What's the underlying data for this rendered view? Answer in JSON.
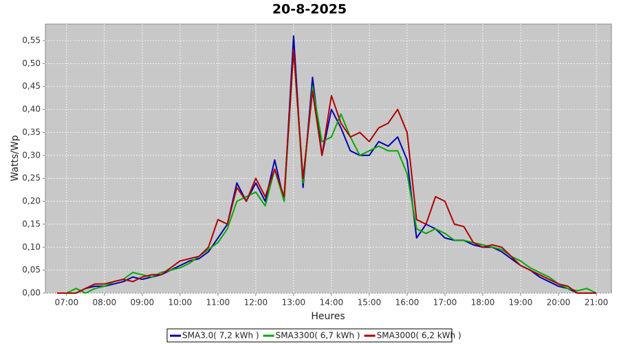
{
  "chart_data": {
    "type": "line",
    "title": "20-8-2025",
    "x_label": "Heures",
    "y_label": "Watts/Wp",
    "x": [
      6.75,
      7,
      7.25,
      7.5,
      7.75,
      8,
      8.25,
      8.5,
      8.75,
      9,
      9.25,
      9.5,
      9.75,
      10,
      10.25,
      10.5,
      10.75,
      11,
      11.25,
      11.5,
      11.75,
      12,
      12.25,
      12.5,
      12.75,
      13,
      13.25,
      13.5,
      13.75,
      14,
      14.25,
      14.5,
      14.75,
      15,
      15.25,
      15.5,
      15.75,
      16,
      16.25,
      16.5,
      16.75,
      17,
      17.25,
      17.5,
      17.75,
      18,
      18.25,
      18.5,
      18.75,
      19,
      19.25,
      19.5,
      19.75,
      20,
      20.25,
      20.5,
      20.75,
      21
    ],
    "xlim": [
      6.44,
      21.4
    ],
    "xticks": [
      {
        "value": 7,
        "label": "07:00"
      },
      {
        "value": 8,
        "label": "08:00"
      },
      {
        "value": 9,
        "label": "09:00"
      },
      {
        "value": 10,
        "label": "10:00"
      },
      {
        "value": 11,
        "label": "11:00"
      },
      {
        "value": 12,
        "label": "12:00"
      },
      {
        "value": 13,
        "label": "13:00"
      },
      {
        "value": 14,
        "label": "14:00"
      },
      {
        "value": 15,
        "label": "15:00"
      },
      {
        "value": 16,
        "label": "16:00"
      },
      {
        "value": 17,
        "label": "17:00"
      },
      {
        "value": 18,
        "label": "18:00"
      },
      {
        "value": 19,
        "label": "19:00"
      },
      {
        "value": 20,
        "label": "20:00"
      },
      {
        "value": 21,
        "label": "21:00"
      }
    ],
    "ylim": [
      0,
      0.586
    ],
    "yticks": [
      {
        "value": 0,
        "label": "0,00"
      },
      {
        "value": 0.05,
        "label": "0,05"
      },
      {
        "value": 0.1,
        "label": "0,10"
      },
      {
        "value": 0.15,
        "label": "0,15"
      },
      {
        "value": 0.2,
        "label": "0,20"
      },
      {
        "value": 0.25,
        "label": "0,25"
      },
      {
        "value": 0.3,
        "label": "0,30"
      },
      {
        "value": 0.35,
        "label": "0,35"
      },
      {
        "value": 0.4,
        "label": "0,40"
      },
      {
        "value": 0.45,
        "label": "0,45"
      },
      {
        "value": 0.5,
        "label": "0,50"
      },
      {
        "value": 0.55,
        "label": "0,55"
      }
    ],
    "grid": true,
    "legend": "bottom",
    "series": [
      {
        "name": "SMA3.0( 7,2 kWh )",
        "color": "#0000b0",
        "values": [
          0,
          0,
          0,
          0.01,
          0.015,
          0.015,
          0.02,
          0.025,
          0.035,
          0.03,
          0.035,
          0.04,
          0.05,
          0.06,
          0.07,
          0.075,
          0.09,
          0.12,
          0.15,
          0.24,
          0.2,
          0.24,
          0.2,
          0.29,
          0.2,
          0.56,
          0.23,
          0.47,
          0.3,
          0.4,
          0.36,
          0.31,
          0.3,
          0.3,
          0.33,
          0.32,
          0.34,
          0.29,
          0.12,
          0.15,
          0.14,
          0.12,
          0.115,
          0.115,
          0.105,
          0.1,
          0.1,
          0.09,
          0.075,
          0.06,
          0.05,
          0.035,
          0.025,
          0.015,
          0.01,
          0,
          0,
          0
        ]
      },
      {
        "name": "SMA3300( 6,7 kWh )",
        "color": "#00aa00",
        "values": [
          0,
          0,
          0.01,
          0,
          0.01,
          0.015,
          0.025,
          0.03,
          0.045,
          0.04,
          0.035,
          0.045,
          0.05,
          0.055,
          0.065,
          0.08,
          0.095,
          0.11,
          0.14,
          0.2,
          0.21,
          0.22,
          0.19,
          0.27,
          0.2,
          0.53,
          0.24,
          0.45,
          0.33,
          0.34,
          0.39,
          0.34,
          0.3,
          0.31,
          0.32,
          0.31,
          0.31,
          0.26,
          0.14,
          0.13,
          0.14,
          0.13,
          0.115,
          0.115,
          0.11,
          0.105,
          0.1,
          0.095,
          0.08,
          0.07,
          0.055,
          0.045,
          0.035,
          0.02,
          0.01,
          0.005,
          0.01,
          0
        ]
      },
      {
        "name": "SMA3000( 6,2 kWh )",
        "color": "#b00000",
        "values": [
          0,
          0,
          0,
          0.01,
          0.02,
          0.02,
          0.025,
          0.03,
          0.025,
          0.035,
          0.04,
          0.04,
          0.055,
          0.07,
          0.075,
          0.08,
          0.1,
          0.16,
          0.15,
          0.23,
          0.2,
          0.25,
          0.21,
          0.27,
          0.21,
          0.53,
          0.25,
          0.44,
          0.3,
          0.43,
          0.37,
          0.34,
          0.35,
          0.33,
          0.36,
          0.37,
          0.4,
          0.35,
          0.16,
          0.15,
          0.21,
          0.2,
          0.15,
          0.145,
          0.11,
          0.1,
          0.105,
          0.1,
          0.08,
          0.06,
          0.05,
          0.04,
          0.03,
          0.02,
          0.015,
          0,
          0,
          0
        ]
      }
    ]
  }
}
